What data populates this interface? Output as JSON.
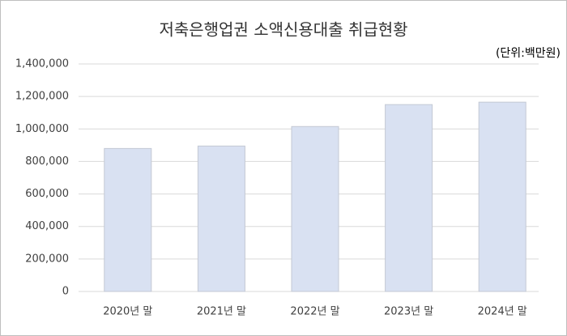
{
  "chart_data": {
    "type": "bar",
    "title": "저축은행업권 소액신용대출 취급현황",
    "subtitle": "(단위:백만원)",
    "categories": [
      "2020년 말",
      "2021년 말",
      "2022년 말",
      "2023년 말",
      "2024년 말"
    ],
    "values": [
      880000,
      895000,
      1015000,
      1150000,
      1165000
    ],
    "color": "#d9e1f2",
    "ylim": [
      0,
      1400000
    ],
    "yticks": [
      0,
      {
        "value": 200000,
        "label": "200,000"
      },
      {
        "value": 400000,
        "label": "400,000"
      },
      {
        "value": 600000,
        "label": "600,000"
      },
      {
        "value": 800000,
        "label": "800,000"
      },
      {
        "value": 1000000,
        "label": "1,000,000"
      },
      {
        "value": 1200000,
        "label": "1,200,000"
      },
      {
        "value": 1400000,
        "label": "1,400,000"
      }
    ],
    "grid": true
  }
}
